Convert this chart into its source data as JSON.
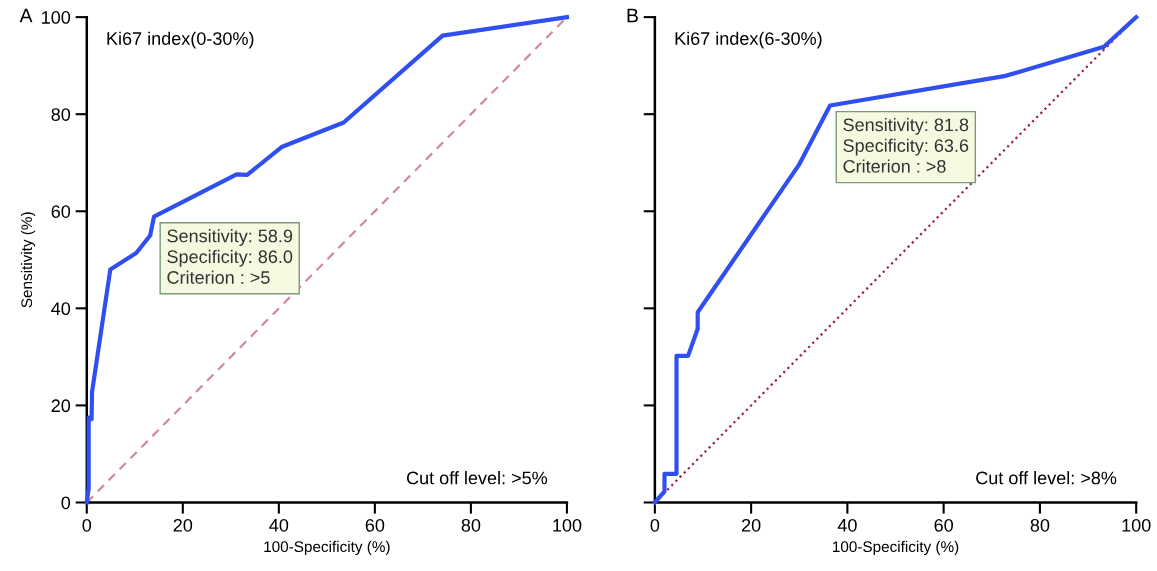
{
  "chart_data": [
    {
      "type": "line",
      "title": "A",
      "xlabel": "100-Specificity (%)",
      "ylabel": "Sensitivity (%)",
      "xlim": [
        0,
        100
      ],
      "ylim": [
        0,
        100
      ],
      "xticks": [
        0,
        20,
        40,
        60,
        80,
        100
      ],
      "yticks": [
        0,
        20,
        40,
        60,
        80,
        100
      ],
      "grid": false,
      "marker": "none",
      "annotations": [
        "Ki67 index(0-30%)",
        "Cut off level: >5%",
        {
          "text": "Sensitivity: 58.9\nSpecificity: 86.0\nCriterion : >5",
          "x": 14.0,
          "y": 58.9
        }
      ],
      "series": [
        {
          "color": "#2f4ff0",
          "line_style": "solid",
          "x": [
            0,
            0.4,
            0.4,
            1,
            1.1,
            4.9,
            10.3,
            13.2,
            14.0,
            31.2,
            33.4,
            40.7,
            53.5,
            74.1,
            100
          ],
          "values": [
            0,
            2.9,
            17.5,
            17.2,
            22.8,
            48,
            51.4,
            55,
            58.9,
            67.6,
            67.5,
            73.3,
            78.3,
            96.2,
            100
          ]
        },
        {
          "color": "#d08a9a",
          "line_style": "dashed",
          "x": [
            0,
            100
          ],
          "values": [
            0,
            100
          ]
        }
      ]
    },
    {
      "type": "line",
      "title": "B",
      "xlabel": "100-Specificity (%)",
      "xlim": [
        0,
        100
      ],
      "ylim": [
        0,
        100
      ],
      "xticks": [
        0,
        20,
        40,
        60,
        80,
        100
      ],
      "yticks": [
        0,
        20,
        40,
        60,
        80,
        100
      ],
      "tick_labels": "x",
      "grid": false,
      "marker": "none",
      "annotations": [
        "Ki67 index(6-30%)",
        "Cut off level: >8%",
        {
          "text": "Sensitivity: 81.8\nSpecificity: 63.6\nCriterion : >8",
          "x": 36.4,
          "y": 81.8
        }
      ],
      "series": [
        {
          "color": "#2f4ff0",
          "line_style": "solid",
          "x": [
            0,
            2,
            2,
            4.5,
            4.5,
            6.9,
            8.9,
            8.9,
            29.9,
            36.4,
            72.9,
            93.3,
            100
          ],
          "values": [
            0,
            2.3,
            5.9,
            5.9,
            30.2,
            30.2,
            35.8,
            39.2,
            69.5,
            81.8,
            87.9,
            93.9,
            100
          ]
        },
        {
          "color": "#a0203a",
          "line_style": "dotted",
          "x": [
            0,
            100
          ],
          "values": [
            0,
            100
          ]
        }
      ]
    }
  ]
}
